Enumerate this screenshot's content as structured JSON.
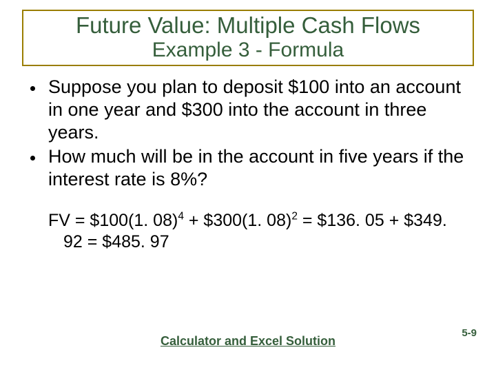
{
  "colors": {
    "title_text": "#355e3b",
    "title_border": "#9a7d00",
    "body_text": "#000000",
    "link_text": "#355e3b",
    "page_num_text": "#355e3b",
    "background": "#ffffff"
  },
  "title": {
    "main": "Future Value: Multiple Cash Flows",
    "sub": "Example 3 - Formula",
    "main_fontsize": 33,
    "sub_fontsize": 30
  },
  "bullets": [
    "Suppose you plan to deposit $100 into an account in one year and $300 into the account in three years.",
    "How much will be in the account in five years if the interest rate is 8%?"
  ],
  "bullet_fontsize": 27,
  "formula": {
    "prefix": "FV = $100(1. 08)",
    "exp1": "4",
    "mid1": " + $300(1. 08)",
    "exp2": "2",
    "tail": " = $136. 05 + $349. 92 = $485. 97",
    "fontsize": 25
  },
  "footer_link": "Calculator and Excel Solution",
  "footer_fontsize": 18,
  "page_number": "5-9",
  "page_number_fontsize": 15
}
